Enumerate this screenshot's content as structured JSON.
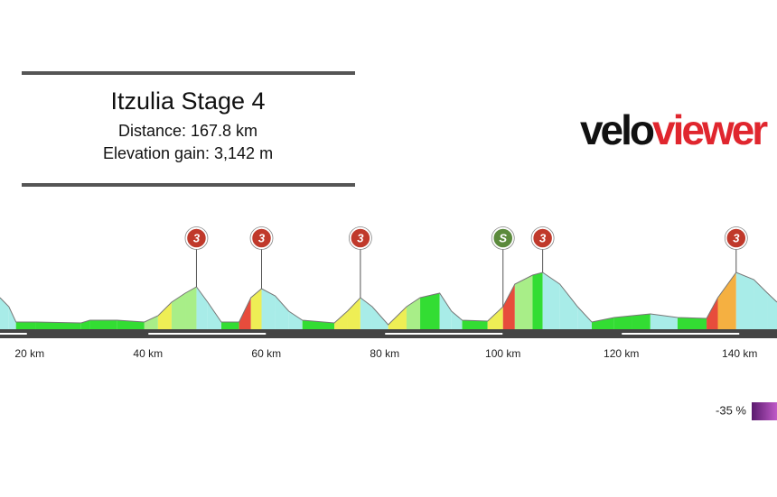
{
  "chart_data": {
    "type": "area",
    "title": "Itzulia Stage 4",
    "subtitle": [
      "Distance: 167.8 km",
      "Elevation gain: 3,142 m"
    ],
    "logo": [
      "velo",
      "viewer"
    ],
    "x": [
      15.0,
      16.5,
      17.7,
      21.1,
      28.7,
      30.2,
      34.8,
      39.4,
      41.7,
      44.0,
      46.3,
      48.2,
      50.1,
      52.4,
      55.4,
      57.4,
      59.2,
      61.5,
      63.8,
      66.1,
      71.5,
      73.7,
      75.9,
      77.9,
      80.6,
      83.7,
      86.0,
      89.3,
      91.3,
      93.1,
      97.4,
      100.0,
      102.0,
      105.0,
      106.7,
      109.6,
      112.6,
      115.0,
      118.8,
      121.8,
      124.9,
      129.5,
      134.4,
      136.3,
      139.4,
      142.4,
      144.7,
      146.3
    ],
    "values": [
      280,
      200,
      64,
      64,
      56,
      80,
      80,
      64,
      120,
      240,
      320,
      376,
      240,
      64,
      64,
      280,
      360,
      296,
      160,
      80,
      56,
      160,
      280,
      200,
      40,
      200,
      280,
      320,
      160,
      80,
      72,
      200,
      400,
      480,
      504,
      400,
      200,
      64,
      104,
      120,
      136,
      104,
      96,
      280,
      504,
      440,
      320,
      240
    ],
    "xlim": [
      15.0,
      146.3
    ],
    "ylim": [
      0,
      600
    ],
    "xticks": [
      {
        "value": 20,
        "label": "20 km"
      },
      {
        "value": 40,
        "label": "40 km"
      },
      {
        "value": 60,
        "label": "60 km"
      },
      {
        "value": 80,
        "label": "80 km"
      },
      {
        "value": 100,
        "label": "100 km"
      },
      {
        "value": 120,
        "label": "120 km"
      },
      {
        "value": 140,
        "label": "140 km"
      }
    ],
    "climbs": [
      {
        "x": 48.2,
        "label": "3",
        "color": "#c0392b"
      },
      {
        "x": 59.2,
        "label": "3",
        "color": "#c0392b"
      },
      {
        "x": 75.9,
        "label": "3",
        "color": "#c0392b"
      },
      {
        "x": 100.0,
        "label": "S",
        "color": "#5b8a3c"
      },
      {
        "x": 106.7,
        "label": "3",
        "color": "#c0392b"
      },
      {
        "x": 139.4,
        "label": "3",
        "color": "#c0392b"
      }
    ],
    "legend_label": "-35 %"
  }
}
